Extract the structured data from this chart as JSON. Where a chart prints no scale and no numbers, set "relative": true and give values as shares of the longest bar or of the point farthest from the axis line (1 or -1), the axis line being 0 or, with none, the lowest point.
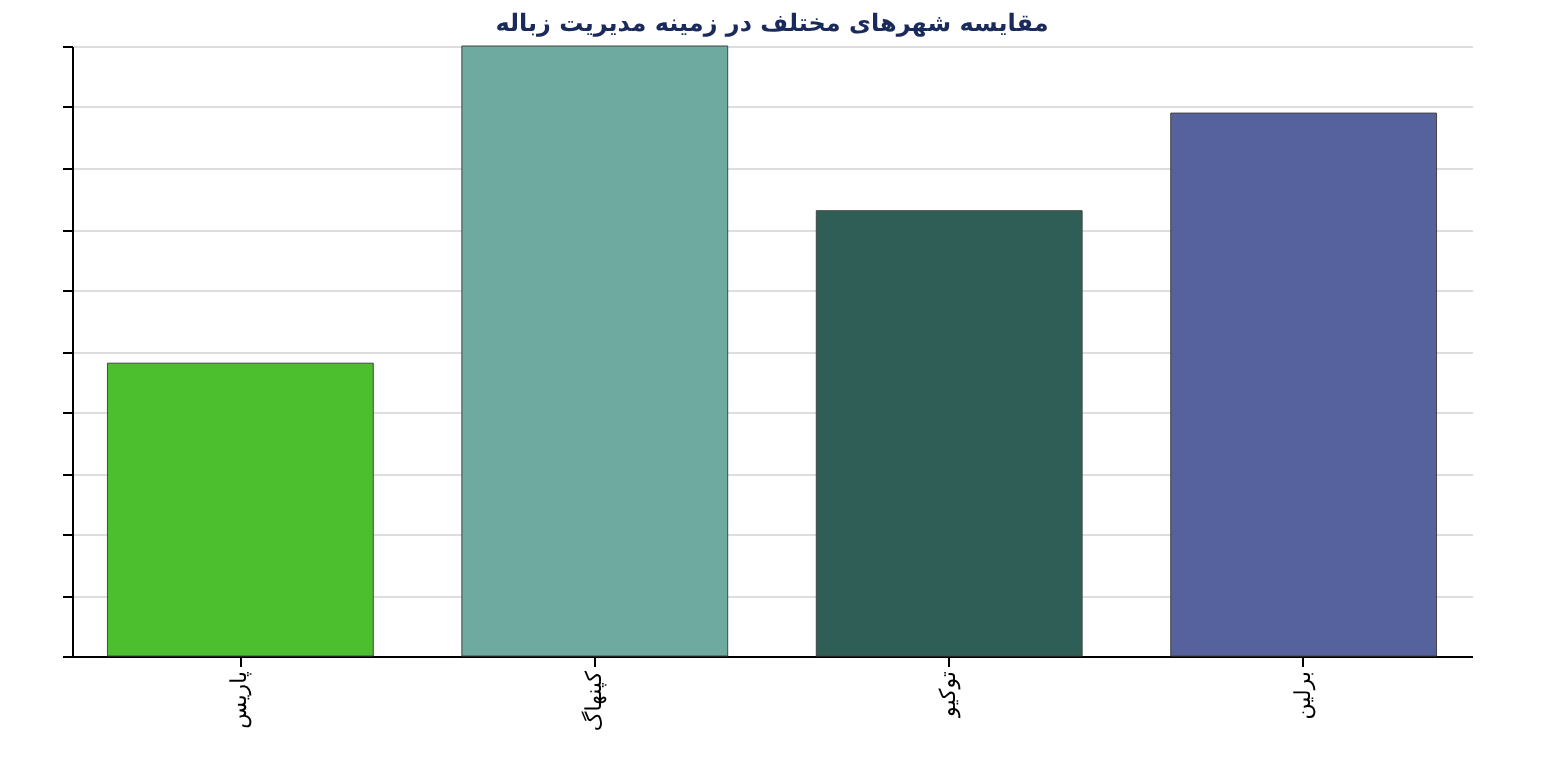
{
  "chart_data": {
    "type": "bar",
    "title": "مقایسه شهرهای مختلف در زمینه مدیریت زباله",
    "categories": [
      "پاریس",
      "کپنهاگ",
      "توکیو",
      "برلین"
    ],
    "values": [
      0.48,
      1,
      0.73,
      0.89
    ],
    "colors": [
      "#4cbf2e",
      "#6faaa1",
      "#2f5e57",
      "#55629e"
    ],
    "relative": true,
    "grid": "y"
  }
}
